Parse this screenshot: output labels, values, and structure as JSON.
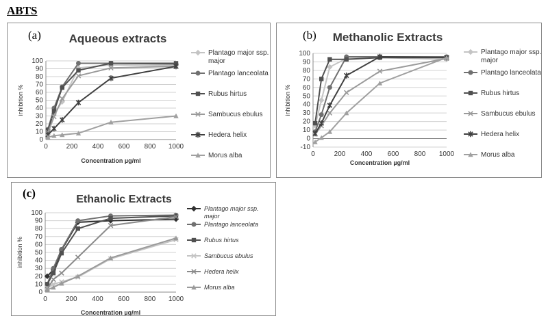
{
  "header": "ABTS",
  "chart_data": [
    {
      "tag": "(a)",
      "type": "line",
      "title": "Aqueous extracts",
      "xlabel": "Concentration µg/ml",
      "ylabel": "inhibition %",
      "xlim": [
        0,
        1000
      ],
      "ylim": [
        0,
        100
      ],
      "xticks": [
        0,
        200,
        400,
        600,
        800,
        1000
      ],
      "yticks": [
        0,
        10,
        20,
        30,
        40,
        50,
        60,
        70,
        80,
        90,
        100
      ],
      "grid": "horizontal",
      "legend": "right",
      "legend_italic": false,
      "series": [
        {
          "name": "Plantago major ssp. major",
          "color": "#c4c4c4",
          "marker": "diamond",
          "points": [
            [
              15.6,
              12
            ],
            [
              62.5,
              33
            ],
            [
              125,
              48
            ],
            [
              250,
              91
            ],
            [
              500,
              95
            ],
            [
              1000,
              94
            ]
          ]
        },
        {
          "name": "Plantago lanceolata",
          "color": "#707070",
          "marker": "circle",
          "points": [
            [
              15.6,
              13
            ],
            [
              62.5,
              40
            ],
            [
              125,
              67
            ],
            [
              250,
              97
            ],
            [
              500,
              97
            ],
            [
              1000,
              96
            ]
          ]
        },
        {
          "name": "Rubus hirtus",
          "color": "#505050",
          "marker": "square",
          "points": [
            [
              15.6,
              12
            ],
            [
              62.5,
              36
            ],
            [
              125,
              66
            ],
            [
              250,
              88
            ],
            [
              500,
              97
            ],
            [
              1000,
              97
            ]
          ]
        },
        {
          "name": "Sambucus ebulus",
          "color": "#9a9a9a",
          "marker": "x",
          "points": [
            [
              15.6,
              9
            ],
            [
              62.5,
              29
            ],
            [
              125,
              52
            ],
            [
              250,
              81
            ],
            [
              500,
              91
            ],
            [
              1000,
              93
            ]
          ]
        },
        {
          "name": "Hedera helix",
          "color": "#404040",
          "marker": "star",
          "points": [
            [
              15.6,
              6
            ],
            [
              62.5,
              14
            ],
            [
              125,
              25
            ],
            [
              250,
              47
            ],
            [
              500,
              78
            ],
            [
              1000,
              93
            ]
          ]
        },
        {
          "name": "Morus alba",
          "color": "#a0a0a0",
          "marker": "triangle",
          "points": [
            [
              15.6,
              3
            ],
            [
              62.5,
              5
            ],
            [
              125,
              6
            ],
            [
              250,
              8
            ],
            [
              500,
              22
            ],
            [
              1000,
              30
            ]
          ]
        }
      ]
    },
    {
      "tag": "(b)",
      "type": "line",
      "title": "Methanolic Extracts",
      "xlabel": "Concentration µg/ml",
      "ylabel": "inhibition %",
      "xlim": [
        0,
        1000
      ],
      "ylim": [
        -10,
        100
      ],
      "xticks": [
        0,
        200,
        400,
        600,
        800,
        1000
      ],
      "yticks": [
        -10,
        0,
        10,
        20,
        30,
        40,
        50,
        60,
        70,
        80,
        90,
        100
      ],
      "grid": "horizontal",
      "legend": "right",
      "legend_italic": false,
      "series": [
        {
          "name": "Plantago major ssp. major",
          "color": "#c4c4c4",
          "marker": "diamond",
          "points": [
            [
              15.6,
              15
            ],
            [
              62.5,
              45
            ],
            [
              125,
              84
            ],
            [
              250,
              94
            ],
            [
              500,
              95
            ],
            [
              1000,
              93
            ]
          ]
        },
        {
          "name": "Plantago lanceolata",
          "color": "#707070",
          "marker": "circle",
          "points": [
            [
              15.6,
              8
            ],
            [
              62.5,
              28
            ],
            [
              125,
              60
            ],
            [
              250,
              96
            ],
            [
              500,
              96
            ],
            [
              1000,
              96
            ]
          ]
        },
        {
          "name": "Rubus hirtus",
          "color": "#505050",
          "marker": "square",
          "points": [
            [
              15.6,
              18
            ],
            [
              62.5,
              70
            ],
            [
              125,
              93
            ],
            [
              250,
              93
            ],
            [
              500,
              95
            ],
            [
              1000,
              95
            ]
          ]
        },
        {
          "name": "Sambucus ebulus",
          "color": "#9a9a9a",
          "marker": "x",
          "points": [
            [
              15.6,
              5
            ],
            [
              62.5,
              15
            ],
            [
              125,
              30
            ],
            [
              250,
              54
            ],
            [
              500,
              79
            ],
            [
              1000,
              94
            ]
          ]
        },
        {
          "name": "Hedera helix",
          "color": "#404040",
          "marker": "star",
          "points": [
            [
              15.6,
              6
            ],
            [
              62.5,
              18
            ],
            [
              125,
              39
            ],
            [
              250,
              74
            ],
            [
              500,
              96
            ],
            [
              1000,
              95
            ]
          ]
        },
        {
          "name": "Morus alba",
          "color": "#a0a0a0",
          "marker": "triangle",
          "points": [
            [
              15.6,
              -4
            ],
            [
              62.5,
              1
            ],
            [
              125,
              8
            ],
            [
              250,
              30
            ],
            [
              500,
              65
            ],
            [
              1000,
              95
            ]
          ]
        }
      ]
    },
    {
      "tag": "(c)",
      "type": "line",
      "title": "Ethanolic Extracts",
      "xlabel": "Concentration µg/ml",
      "ylabel": "inhibition %",
      "xlim": [
        0,
        1000
      ],
      "ylim": [
        0,
        100
      ],
      "xticks": [
        0,
        200,
        400,
        600,
        800,
        1000
      ],
      "yticks": [
        0,
        10,
        20,
        30,
        40,
        50,
        60,
        70,
        80,
        90,
        100
      ],
      "grid": "horizontal",
      "legend": "right",
      "legend_italic": true,
      "series": [
        {
          "name": "Plantago major ssp. major",
          "color": "#303030",
          "marker": "diamond",
          "points": [
            [
              15.6,
              20
            ],
            [
              62.5,
              28
            ],
            [
              125,
              53
            ],
            [
              250,
              88
            ],
            [
              500,
              90
            ],
            [
              1000,
              92
            ]
          ]
        },
        {
          "name": "Plantago lanceolata",
          "color": "#707070",
          "marker": "circle",
          "points": [
            [
              15.6,
              10
            ],
            [
              62.5,
              30
            ],
            [
              125,
              54
            ],
            [
              250,
              90
            ],
            [
              500,
              96
            ],
            [
              1000,
              97
            ]
          ]
        },
        {
          "name": "Rubus hirtus",
          "color": "#505050",
          "marker": "square",
          "points": [
            [
              15.6,
              10
            ],
            [
              62.5,
              24
            ],
            [
              125,
              49
            ],
            [
              250,
              80
            ],
            [
              500,
              93
            ],
            [
              1000,
              96
            ]
          ]
        },
        {
          "name": "Sambucus ebulus",
          "color": "#c4c4c4",
          "marker": "x",
          "points": [
            [
              15.6,
              5
            ],
            [
              62.5,
              10
            ],
            [
              125,
              13
            ],
            [
              250,
              19
            ],
            [
              500,
              42
            ],
            [
              1000,
              66
            ]
          ]
        },
        {
          "name": "Hedera helix",
          "color": "#8a8a8a",
          "marker": "x",
          "points": [
            [
              15.6,
              4
            ],
            [
              62.5,
              16
            ],
            [
              125,
              24
            ],
            [
              250,
              44
            ],
            [
              500,
              84
            ],
            [
              1000,
              95
            ]
          ]
        },
        {
          "name": "Morus alba",
          "color": "#9a9a9a",
          "marker": "triangle",
          "points": [
            [
              15.6,
              3
            ],
            [
              62.5,
              6
            ],
            [
              125,
              11
            ],
            [
              250,
              20
            ],
            [
              500,
              43
            ],
            [
              1000,
              68
            ]
          ]
        }
      ]
    }
  ]
}
